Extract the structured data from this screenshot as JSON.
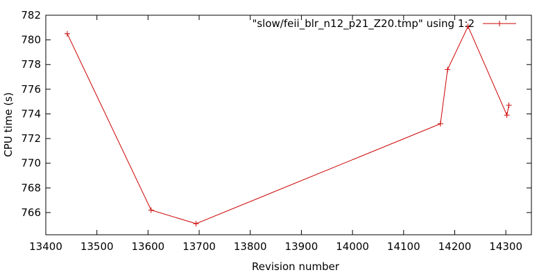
{
  "chart_data": {
    "type": "line",
    "title": "",
    "xlabel": "Revision number",
    "ylabel": "CPU time (s)",
    "xlim": [
      13400,
      14350
    ],
    "ylim": [
      764.2,
      782
    ],
    "xticks": [
      13400,
      13500,
      13600,
      13700,
      13800,
      13900,
      14000,
      14100,
      14200,
      14300
    ],
    "yticks": [
      766,
      768,
      770,
      772,
      774,
      776,
      778,
      780,
      782
    ],
    "grid": false,
    "legend_position": "top-right",
    "series": [
      {
        "name": "\"slow/feii_blr_n12_p21_Z20.tmp\" using 1:2",
        "color": "#cc0000",
        "marker": "plus",
        "x": [
          13442,
          13606,
          13694,
          14172,
          14186,
          14226,
          14302,
          14306
        ],
        "y": [
          780.5,
          766.2,
          765.1,
          773.2,
          777.6,
          781.1,
          773.9,
          774.7
        ]
      }
    ]
  }
}
